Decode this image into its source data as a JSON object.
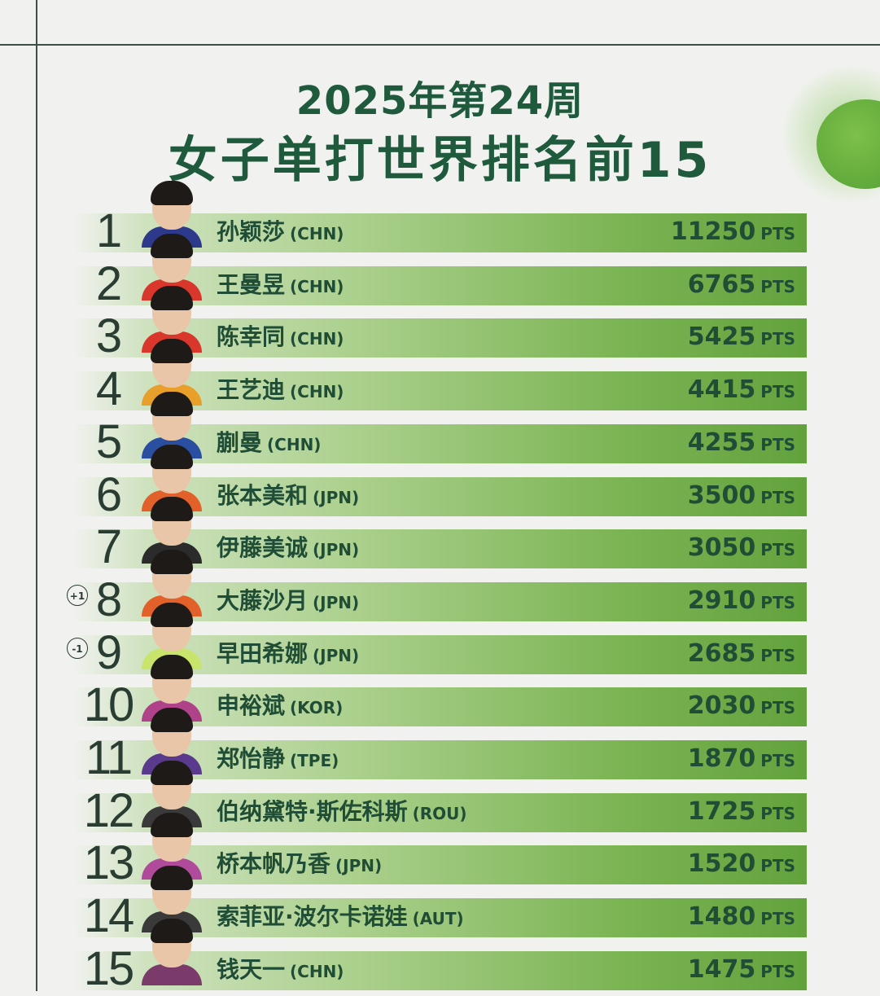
{
  "title": {
    "line1": "2025年第24周",
    "line2": "女子单打世界排名前15"
  },
  "points_unit": "PTS",
  "colors": {
    "title": "#1f5a3d",
    "bar_end": "#62a23c",
    "text": "#1f4d36"
  },
  "rankings": [
    {
      "rank": "1",
      "name": "孙颖莎",
      "country": "(CHN)",
      "points": "11250",
      "change": "",
      "shirt": "#2d3a8c"
    },
    {
      "rank": "2",
      "name": "王曼昱",
      "country": "(CHN)",
      "points": "6765",
      "change": "",
      "shirt": "#d9372b"
    },
    {
      "rank": "3",
      "name": "陈幸同",
      "country": "(CHN)",
      "points": "5425",
      "change": "",
      "shirt": "#d9372b"
    },
    {
      "rank": "4",
      "name": "王艺迪",
      "country": "(CHN)",
      "points": "4415",
      "change": "",
      "shirt": "#e8a02a"
    },
    {
      "rank": "5",
      "name": "蒯曼",
      "country": "(CHN)",
      "points": "4255",
      "change": "",
      "shirt": "#2b4fa0"
    },
    {
      "rank": "6",
      "name": "张本美和",
      "country": "(JPN)",
      "points": "3500",
      "change": "",
      "shirt": "#e2612a"
    },
    {
      "rank": "7",
      "name": "伊藤美诚",
      "country": "(JPN)",
      "points": "3050",
      "change": "",
      "shirt": "#2b2b2b"
    },
    {
      "rank": "8",
      "name": "大藤沙月",
      "country": "(JPN)",
      "points": "2910",
      "change": "+1",
      "shirt": "#e2612a"
    },
    {
      "rank": "9",
      "name": "早田希娜",
      "country": "(JPN)",
      "points": "2685",
      "change": "-1",
      "shirt": "#c9e46a"
    },
    {
      "rank": "10",
      "name": "申裕斌",
      "country": "(KOR)",
      "points": "2030",
      "change": "",
      "shirt": "#b0428a"
    },
    {
      "rank": "11",
      "name": "郑怡静",
      "country": "(TPE)",
      "points": "1870",
      "change": "",
      "shirt": "#5a3a8c"
    },
    {
      "rank": "12",
      "name": "伯纳黛特·斯佐科斯",
      "country": "(ROU)",
      "points": "1725",
      "change": "",
      "shirt": "#3a3a3a"
    },
    {
      "rank": "13",
      "name": "桥本帆乃香",
      "country": "(JPN)",
      "points": "1520",
      "change": "",
      "shirt": "#b04a9a"
    },
    {
      "rank": "14",
      "name": "索菲亚·波尔卡诺娃",
      "country": "(AUT)",
      "points": "1480",
      "change": "",
      "shirt": "#3a3a3a"
    },
    {
      "rank": "15",
      "name": "钱天一",
      "country": "(CHN)",
      "points": "1475",
      "change": "",
      "shirt": "#7a3a6a"
    }
  ]
}
